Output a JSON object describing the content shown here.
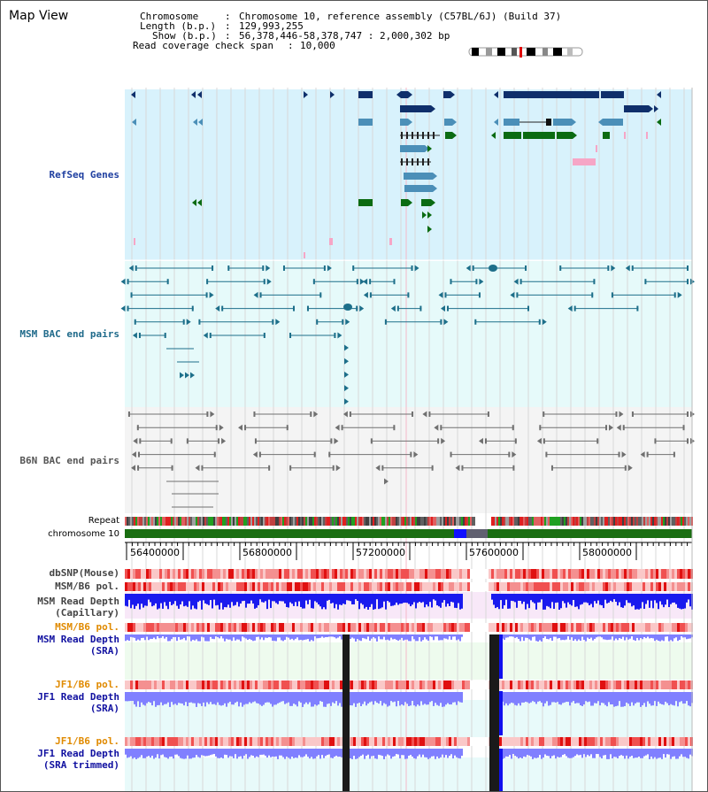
{
  "view_title": "Map View",
  "info": {
    "chromosome_key": "Chromosome",
    "chromosome_value": "Chromosome 10, reference assembly (C57BL/6J) (Build 37)",
    "length_key": "Length (b.p.)",
    "length_value": "129,993,255",
    "show_key": "Show (b.p.)",
    "show_value": "56,378,446-58,378,747 : 2,000,302 bp",
    "coverage_key": "Read coverage check span",
    "coverage_value": "10,000"
  },
  "tracks": {
    "refseq": "RefSeq Genes",
    "msm_bac": "MSM BAC end pairs",
    "b6n_bac": "B6N BAC end pairs",
    "repeat": "Repeat",
    "chromosome": "chromosome 10",
    "dbsnp": "dbSNP(Mouse)",
    "msm_b6_pol_1": "MSM/B6 pol.",
    "msm_depth_cap_1": "MSM Read Depth",
    "msm_depth_cap_2": "(Capillary)",
    "msm_b6_pol_2": "MSM/B6 pol.",
    "msm_depth_sra_1": "MSM Read Depth",
    "msm_depth_sra_2": "(SRA)",
    "jf1_b6_pol_1": "JF1/B6 pol.",
    "jf1_depth_sra_1": "JF1 Read Depth",
    "jf1_depth_sra_2": "(SRA)",
    "jf1_b6_pol_2": "JF1/B6 pol.",
    "jf1_depth_trim_1": "JF1 Read Depth",
    "jf1_depth_trim_2": "(SRA trimmed)"
  },
  "ruler": {
    "ticks": [
      "56400000",
      "56800000",
      "57200000",
      "57600000",
      "58000000"
    ]
  },
  "colors": {
    "refseq_bg": "#d8f2fc",
    "msm_bg": "#e6fafa",
    "b6n_bg": "#f4f4f4",
    "gene_navy": "#0f2f6b",
    "gene_blue": "#4b8fb8",
    "gene_green": "#0b6b12",
    "gene_pink": "#f6a6c6",
    "bac_teal": "#1d6f8a",
    "bac_grey": "#707070",
    "label_refseq": "#1f3fa0",
    "label_msm": "#1f6a8a",
    "label_b6n": "#555555",
    "label_orange": "#e08a00",
    "label_blue": "#1010a0",
    "chromosome_green": "#1a6e12",
    "depth_blue": "#1a1aee",
    "depth_lavender": "#8080ff",
    "pol_red": "#f06060"
  }
}
